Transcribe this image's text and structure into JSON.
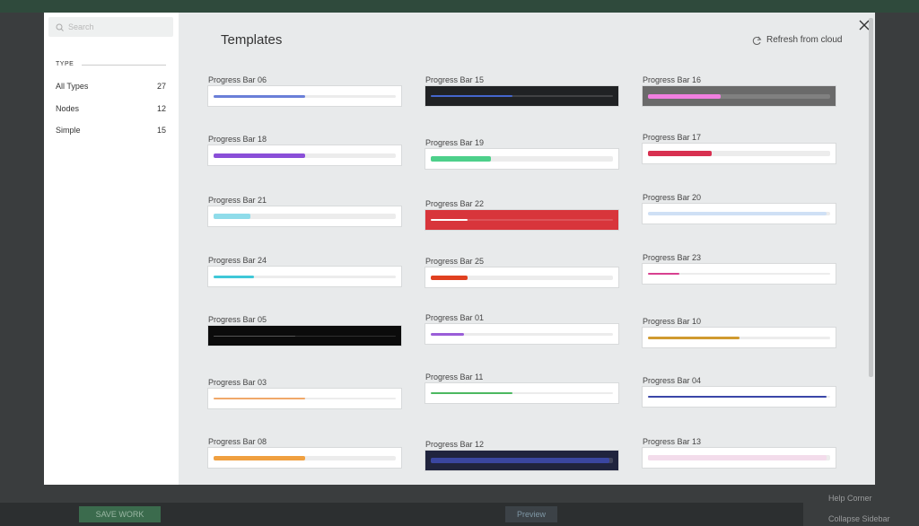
{
  "app": {
    "bottom_bar": {
      "save": "SAVE WORK",
      "preview": "Preview"
    },
    "sidebar": {
      "help": "Help Corner",
      "collapse": "Collapse Sidebar"
    }
  },
  "modal": {
    "search_placeholder": "Search",
    "filter_heading": "TYPE",
    "filters": [
      {
        "label": "All Types",
        "count": "27"
      },
      {
        "label": "Nodes",
        "count": "12"
      },
      {
        "label": "Simple",
        "count": "15"
      }
    ],
    "title": "Templates",
    "refresh": "Refresh from cloud",
    "templates": [
      "Progress Bar 06",
      "Progress Bar 18",
      "Progress Bar 21",
      "Progress Bar 24",
      "Progress Bar 05",
      "Progress Bar 03",
      "Progress Bar 08",
      "Progress Bar 15",
      "Progress Bar 19",
      "Progress Bar 22",
      "Progress Bar 25",
      "Progress Bar 01",
      "Progress Bar 11",
      "Progress Bar 12",
      "Progress Bar 16",
      "Progress Bar 17",
      "Progress Bar 20",
      "Progress Bar 23",
      "Progress Bar 10",
      "Progress Bar 04",
      "Progress Bar 13"
    ]
  }
}
